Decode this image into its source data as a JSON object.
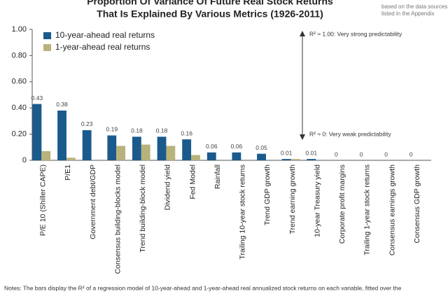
{
  "chart_data": {
    "type": "bar",
    "title": [
      "Proportion Of Variance Of Future Real Stock Returns",
      "That Is Explained By Various Metrics (1926-2011)"
    ],
    "source": [
      "based on the data sources",
      "listed in the Appendix"
    ],
    "categories": [
      "P/E 10 (Shiller CAPE)",
      "P/E1",
      "Government debt/GDP",
      "Consensus building-blocks model",
      "Trend building-block model",
      "Dividend yield",
      "Fed Model",
      "Rainfall",
      "Trailing 10-year stock returns",
      "Trend GDP growth",
      "Trend earning growth",
      "10-year Treasury yield",
      "Corporate profit margins",
      "Trailing 1-year stock returns",
      "Consensus earnings growth",
      "Consensus GDP growth"
    ],
    "series": [
      {
        "name": "10-year-ahead real returns",
        "color": "#1b5a8c",
        "values": [
          0.43,
          0.38,
          0.23,
          0.19,
          0.18,
          0.18,
          0.16,
          0.06,
          0.06,
          0.05,
          0.01,
          0.01,
          0,
          0,
          0,
          0
        ]
      },
      {
        "name": "1-year-ahead real returns",
        "color": "#b8b27c",
        "values": [
          0.07,
          0.02,
          0,
          0.11,
          0.12,
          0.11,
          0.04,
          0,
          0,
          0,
          0.01,
          0,
          0,
          0,
          0,
          0
        ]
      }
    ],
    "ylim": [
      0,
      1
    ],
    "yticks": [
      0,
      {
        "value": 0.2,
        "label": "0.20"
      },
      {
        "value": 0.4,
        "label": "0.40"
      },
      {
        "value": 0.6,
        "label": "0.60"
      },
      {
        "value": 0.8,
        "label": "0.80"
      },
      {
        "value": 1,
        "label": "1.00"
      }
    ],
    "annotations": [
      "R² ≈ 1.00: Very strong predictability",
      "R² ≈ 0: Very weak predictability"
    ],
    "notes": "Notes: The bars display the R² of a regression model of 10-year-ahead and 1-year-ahead real annualized stock returns on each variable, fitted over the"
  }
}
